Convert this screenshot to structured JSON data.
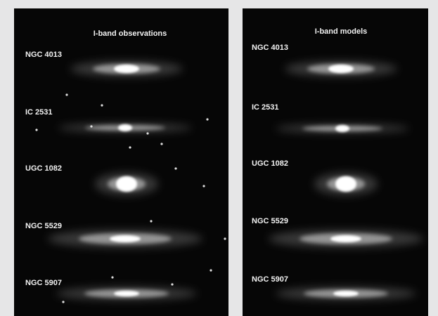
{
  "panels": [
    {
      "title": "I-band observations",
      "labels": [
        "NGC 4013",
        "IC 2531",
        "UGC 1082",
        "NGC 5529",
        "NGC 5907"
      ]
    },
    {
      "title": "I-band models",
      "labels": [
        "NGC 4013",
        "IC 2531",
        "UGC 1082",
        "NGC 5529",
        "NGC 5907"
      ]
    }
  ]
}
